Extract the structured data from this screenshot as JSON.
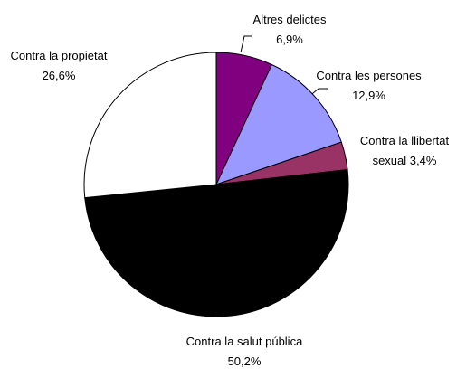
{
  "chart_data": {
    "type": "pie",
    "categories": [
      "Altres delictes",
      "Contra les persones",
      "Contra la llibertat sexual",
      "Contra la salut pública",
      "Contra la propietat"
    ],
    "values": [
      6.9,
      12.9,
      3.4,
      50.2,
      26.6
    ],
    "value_labels": [
      "6,9%",
      "12,9%",
      "3,4%",
      "50,2%",
      "26,6%"
    ],
    "colors": [
      "#800080",
      "#9999ff",
      "#993366",
      "#000000",
      "#ffffff"
    ]
  }
}
